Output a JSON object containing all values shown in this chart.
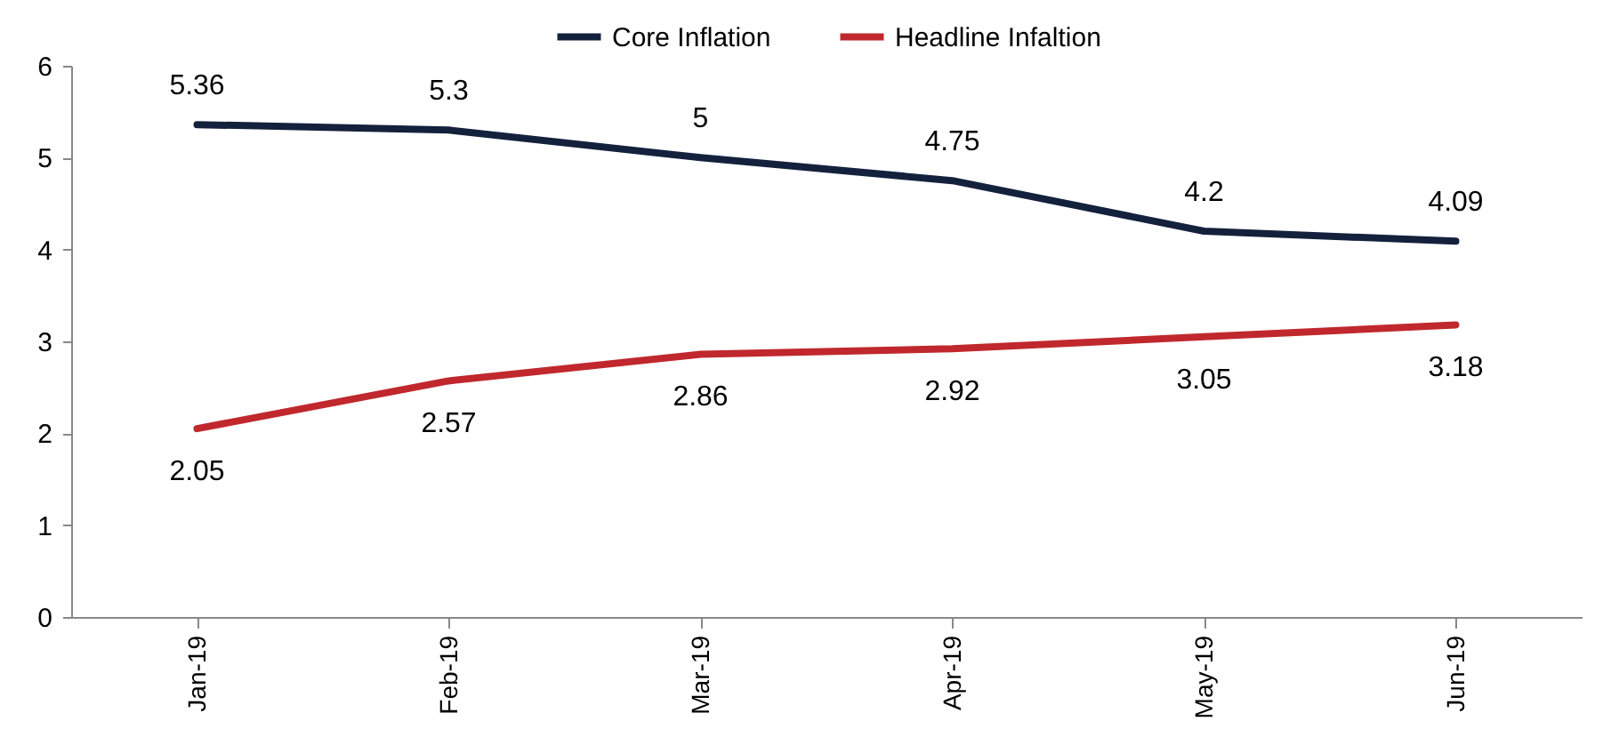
{
  "chart_data": {
    "type": "line",
    "categories": [
      "Jan-19",
      "Feb-19",
      "Mar-19",
      "Apr-19",
      "May-19",
      "Jun-19"
    ],
    "series": [
      {
        "name": "Core Inflation",
        "color": "#14213d",
        "values": [
          5.36,
          5.3,
          5,
          4.75,
          4.2,
          4.09
        ]
      },
      {
        "name": "Headline Infaltion",
        "color": "#c0282d",
        "values": [
          2.05,
          2.57,
          2.86,
          2.92,
          3.05,
          3.18
        ]
      }
    ],
    "ylim": [
      0,
      6
    ],
    "yticks": [
      0,
      1,
      2,
      3,
      4,
      5,
      6
    ],
    "grid": false,
    "legend": "top",
    "data_labels": true,
    "marker": "none",
    "line_style": "solid"
  }
}
